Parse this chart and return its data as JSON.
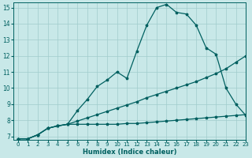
{
  "xlabel": "Humidex (Indice chaleur)",
  "ylabel": "",
  "bg_color": "#c8e8e8",
  "grid_color": "#a0cccc",
  "line_color": "#006060",
  "xlim": [
    -0.5,
    23
  ],
  "ylim": [
    6.8,
    15.3
  ],
  "xticks": [
    0,
    1,
    2,
    3,
    4,
    5,
    6,
    7,
    8,
    9,
    10,
    11,
    12,
    13,
    14,
    15,
    16,
    17,
    18,
    19,
    20,
    21,
    22,
    23
  ],
  "yticks": [
    7,
    8,
    9,
    10,
    11,
    12,
    13,
    14,
    15
  ],
  "line1_x": [
    0,
    1,
    2,
    3,
    4,
    5,
    6,
    7,
    8,
    9,
    10,
    11,
    12,
    13,
    14,
    15,
    16,
    17,
    18,
    19,
    20,
    21,
    22,
    23
  ],
  "line1_y": [
    6.85,
    6.85,
    7.1,
    7.5,
    7.65,
    7.75,
    8.6,
    9.3,
    10.1,
    10.5,
    11.0,
    10.6,
    12.3,
    13.9,
    15.0,
    15.2,
    14.7,
    14.6,
    13.9,
    12.5,
    12.1,
    10.0,
    9.0,
    8.3
  ],
  "line2_x": [
    0,
    1,
    2,
    3,
    4,
    5,
    6,
    7,
    8,
    9,
    10,
    11,
    12,
    13,
    14,
    15,
    16,
    17,
    18,
    19,
    20,
    21,
    22,
    23
  ],
  "line2_y": [
    6.85,
    6.85,
    7.1,
    7.5,
    7.65,
    7.75,
    7.95,
    8.15,
    8.35,
    8.55,
    8.75,
    8.95,
    9.15,
    9.4,
    9.6,
    9.8,
    10.0,
    10.2,
    10.4,
    10.65,
    10.9,
    11.2,
    11.6,
    12.0
  ],
  "line3_x": [
    0,
    1,
    2,
    3,
    4,
    5,
    6,
    7,
    8,
    9,
    10,
    11,
    12,
    13,
    14,
    15,
    16,
    17,
    18,
    19,
    20,
    21,
    22,
    23
  ],
  "line3_y": [
    6.85,
    6.85,
    7.1,
    7.5,
    7.65,
    7.75,
    7.75,
    7.75,
    7.75,
    7.75,
    7.75,
    7.8,
    7.8,
    7.85,
    7.9,
    7.95,
    8.0,
    8.05,
    8.1,
    8.15,
    8.2,
    8.25,
    8.3,
    8.35
  ]
}
